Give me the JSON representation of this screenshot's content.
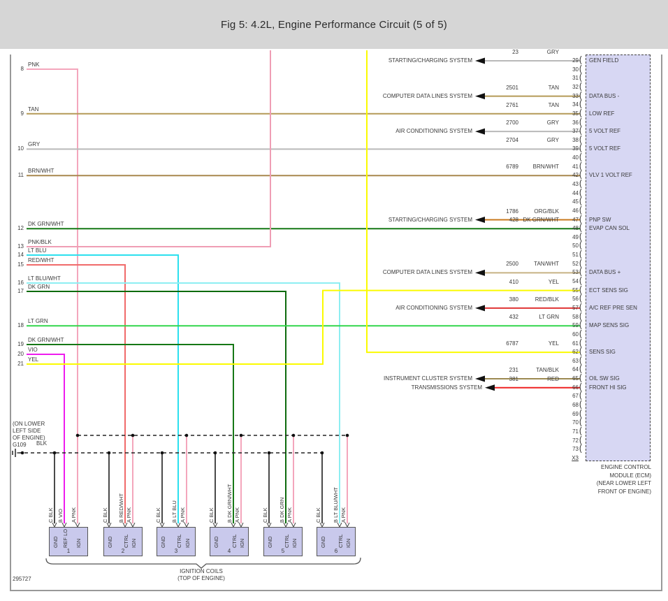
{
  "title": "Fig 5: 4.2L, Engine Performance Circuit (5 of 5)",
  "figure_code": "295727",
  "colors": {
    "PNK": "#f4a6bc",
    "PNK/BLK": "#ef9db4",
    "TAN": "#b49a57",
    "TAN/WHT": "#c7b284",
    "TAN/BLK": "#9c8a52",
    "GRY": "#b9b9b9",
    "BRN/WHT": "#a8874f",
    "DK GRN/WHT": "#167816",
    "DK GRN": "#0d6b0d",
    "LT GRN": "#33d64d",
    "LT BLU": "#2ce0ee",
    "LT BLU/WHT": "#8deef2",
    "RED/WHT": "#f06a6a",
    "RED/BLK": "#e03434",
    "RED": "#ee2222",
    "ORG/BLK": "#c8781e",
    "VIO": "#ee1cee",
    "YEL": "#fbfb00",
    "BLK": "#4a4a4a"
  },
  "left_connector": {
    "pins": [
      {
        "pin": 8,
        "color": "PNK"
      },
      {
        "pin": 9,
        "color": "TAN"
      },
      {
        "pin": 10,
        "color": "GRY"
      },
      {
        "pin": 11,
        "color": "BRN/WHT"
      },
      {
        "pin": 12,
        "color": "DK GRN/WHT"
      },
      {
        "pin": 13,
        "color": "PNK/BLK"
      },
      {
        "pin": 14,
        "color": "LT BLU"
      },
      {
        "pin": 15,
        "color": "RED/WHT"
      },
      {
        "pin": 16,
        "color": "LT BLU/WHT"
      },
      {
        "pin": 17,
        "color": "DK GRN"
      },
      {
        "pin": 18,
        "color": "LT GRN"
      },
      {
        "pin": 19,
        "color": "DK GRN/WHT"
      },
      {
        "pin": 20,
        "color": "VIO"
      },
      {
        "pin": 21,
        "color": "YEL"
      }
    ]
  },
  "ecm": {
    "first_pin": 29,
    "last_pin": 73,
    "connector_id": "X3",
    "caption_lines": [
      "ENGINE CONTROL",
      "MODULE (ECM)",
      "(NEAR LOWER LEFT",
      "FRONT OF ENGINE)"
    ],
    "connected_pins": [
      {
        "pin": 29,
        "wire": "23",
        "color": "GRY",
        "label": "GEN FIELD",
        "system": "STARTING/CHARGING SYSTEM"
      },
      {
        "pin": 33,
        "wire": "2501",
        "color": "TAN",
        "label": "DATA BUS -",
        "system": "COMPUTER DATA LINES SYSTEM"
      },
      {
        "pin": 35,
        "wire": "2761",
        "color": "TAN",
        "label": "LOW REF",
        "from_pin": 9
      },
      {
        "pin": 37,
        "wire": "2700",
        "color": "GRY",
        "label": "5 VOLT REF",
        "system": "AIR CONDITIONING SYSTEM"
      },
      {
        "pin": 39,
        "wire": "2704",
        "color": "GRY",
        "label": "5 VOLT REF",
        "from_pin": 10
      },
      {
        "pin": 42,
        "wire": "6789",
        "color": "BRN/WHT",
        "label": "VLV 1 VOLT REF",
        "from_pin": 11
      },
      {
        "pin": 47,
        "wire": "1786",
        "color": "ORG/BLK",
        "label": "PNP SW",
        "system": "STARTING/CHARGING SYSTEM"
      },
      {
        "pin": 48,
        "wire": "428",
        "color": "DK GRN/WHT",
        "label": "EVAP CAN SOL",
        "from_pin": 12
      },
      {
        "pin": 53,
        "wire": "2500",
        "color": "TAN/WHT",
        "label": "DATA BUS +",
        "system": "COMPUTER DATA LINES SYSTEM"
      },
      {
        "pin": 55,
        "wire": "410",
        "color": "YEL",
        "label": "ECT SENS SIG",
        "from_pin": 21
      },
      {
        "pin": 57,
        "wire": "380",
        "color": "RED/BLK",
        "label": "A/C REF PRE SEN",
        "system": "AIR CONDITIONING SYSTEM"
      },
      {
        "pin": 59,
        "wire": "432",
        "color": "LT GRN",
        "label": "MAP SENS SIG",
        "from_pin": 18
      },
      {
        "pin": 62,
        "wire": "6787",
        "color": "YEL",
        "label": "SENS SIG",
        "from_top": true
      },
      {
        "pin": 65,
        "wire": "231",
        "color": "TAN/BLK",
        "label": "OIL SW SIG",
        "system": "INSTRUMENT CLUSTER SYSTEM"
      },
      {
        "pin": 66,
        "wire": "381",
        "color": "RED",
        "label": "FRONT HI SIG",
        "system": "TRANSMISSIONS SYSTEM"
      }
    ]
  },
  "ground": {
    "id": "G109",
    "location_lines": [
      "(ON LOWER",
      "LEFT SIDE",
      "OF ENGINE)"
    ],
    "wire_color": "BLK"
  },
  "ignition_coils": {
    "caption_lines": [
      "IGNITION COILS",
      "(TOP OF ENGINE)"
    ],
    "coils": [
      {
        "num": "1",
        "terminals": [
          {
            "t": "C",
            "color": "BLK",
            "fn": "GND"
          },
          {
            "t": "B",
            "color": "VIO",
            "fn": "REF LO"
          },
          {
            "t": "A",
            "color": "PNK",
            "fn": "IGN"
          }
        ]
      },
      {
        "num": "2",
        "terminals": [
          {
            "t": "C",
            "color": "BLK",
            "fn": "GND"
          },
          {
            "t": "B",
            "color": "RED/WHT",
            "fn": "CTRL"
          },
          {
            "t": "A",
            "color": "PNK",
            "fn": "IGN"
          }
        ]
      },
      {
        "num": "3",
        "terminals": [
          {
            "t": "C",
            "color": "BLK",
            "fn": "GND"
          },
          {
            "t": "B",
            "color": "LT BLU",
            "fn": "CTRL"
          },
          {
            "t": "A",
            "color": "PNK",
            "fn": "IGN"
          }
        ]
      },
      {
        "num": "4",
        "terminals": [
          {
            "t": "C",
            "color": "BLK",
            "fn": "GND"
          },
          {
            "t": "B",
            "color": "DK GRN/WHT",
            "fn": "CTRL"
          },
          {
            "t": "A",
            "color": "PNK",
            "fn": "IGN"
          }
        ]
      },
      {
        "num": "5",
        "terminals": [
          {
            "t": "C",
            "color": "BLK",
            "fn": "GND"
          },
          {
            "t": "B",
            "color": "DK GRN",
            "fn": "CTRL"
          },
          {
            "t": "A",
            "color": "PNK",
            "fn": "IGN"
          }
        ]
      },
      {
        "num": "6",
        "terminals": [
          {
            "t": "C",
            "color": "BLK",
            "fn": "GND"
          },
          {
            "t": "B",
            "color": "LT BLU/WHT",
            "fn": "CTRL"
          },
          {
            "t": "A",
            "color": "PNK",
            "fn": "IGN"
          }
        ]
      }
    ]
  }
}
